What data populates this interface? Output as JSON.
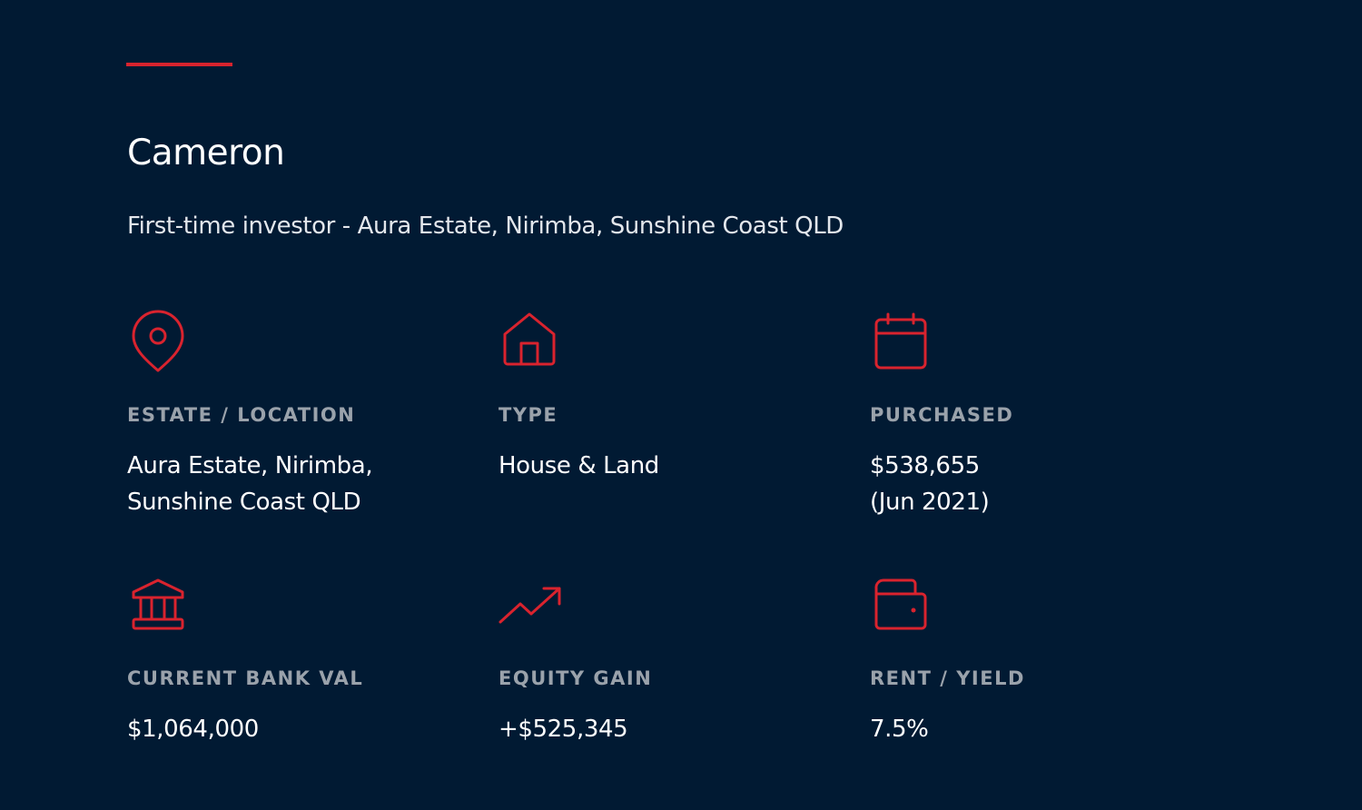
{
  "header": {
    "title": "Cameron",
    "subtitle": "First-time investor - Aura Estate, Nirimba, Sunshine Coast QLD"
  },
  "items": [
    {
      "label": "ESTATE / LOCATION",
      "value": [
        "Aura Estate, Nirimba,",
        "Sunshine Coast QLD"
      ]
    },
    {
      "label": "TYPE",
      "value": [
        "House & Land"
      ]
    },
    {
      "label": "PURCHASED",
      "value": [
        "$538,655",
        "(Jun 2021)"
      ]
    },
    {
      "label": "CURRENT BANK VAL",
      "value": [
        "$1,064,000"
      ]
    },
    {
      "label": "EQUITY GAIN",
      "value": [
        "+$525,345"
      ]
    },
    {
      "label": "RENT / YIELD",
      "value": [
        "7.5%"
      ]
    }
  ]
}
